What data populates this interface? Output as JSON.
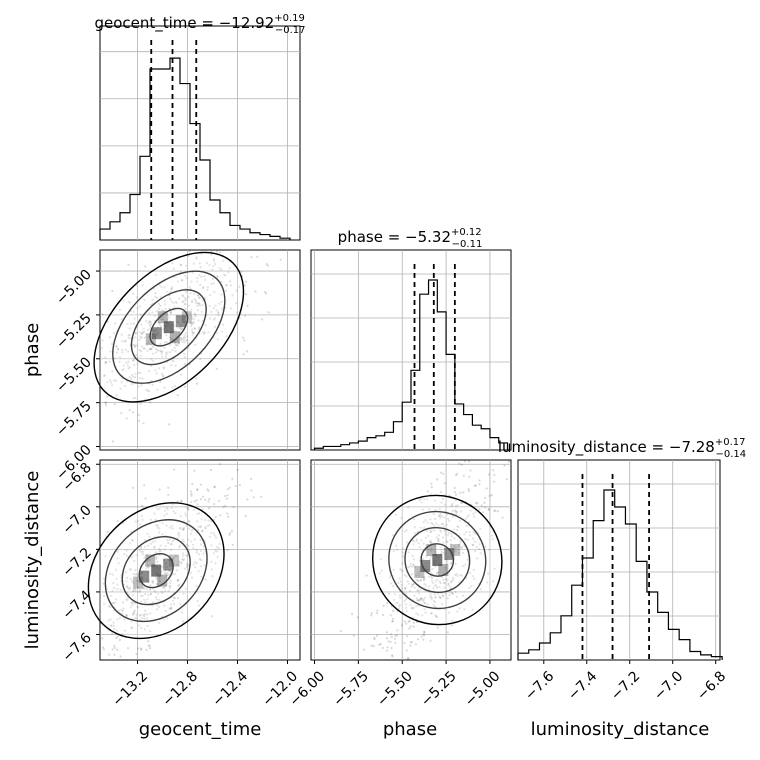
{
  "chart_data": {
    "type": "corner",
    "parameters": [
      "geocent_time",
      "phase",
      "luminosity_distance"
    ],
    "axis_labels": {
      "geocent_time": "geocent_time",
      "phase": "phase",
      "luminosity_distance": "luminosity_distance"
    },
    "titles": [
      {
        "parameter": "geocent_time",
        "text": "geocent_time = −12.92",
        "plus": "+0.19",
        "minus": "−0.17"
      },
      {
        "parameter": "phase",
        "text": "phase = −5.32",
        "plus": "+0.12",
        "minus": "−0.11"
      },
      {
        "parameter": "luminosity_distance",
        "text": "luminosity_distance = −7.28",
        "plus": "+0.17",
        "minus": "−0.14"
      }
    ],
    "ranges": {
      "geocent_time": [
        -13.5,
        -11.9
      ],
      "phase": [
        -6.02,
        -4.88
      ],
      "luminosity_distance": [
        -7.72,
        -6.78
      ]
    },
    "ticks": {
      "geocent_time": {
        "values": [
          -13.2,
          -12.8,
          -12.4,
          -12.0
        ],
        "labels": [
          "−13.2",
          "−12.8",
          "−12.4",
          "−12.0"
        ]
      },
      "phase": {
        "values": [
          -6.0,
          -5.75,
          -5.5,
          -5.25,
          -5.0
        ],
        "labels": [
          "−6.00",
          "−5.75",
          "−5.50",
          "−5.25",
          "−5.00"
        ]
      },
      "luminosity_distance": {
        "values": [
          -7.6,
          -7.4,
          -7.2,
          -7.0,
          -6.8
        ],
        "labels": [
          "−7.6",
          "−7.4",
          "−7.2",
          "−7.0",
          "−6.8"
        ]
      }
    },
    "quantiles": {
      "geocent_time": [
        -13.09,
        -12.92,
        -12.73
      ],
      "phase": [
        -5.43,
        -5.32,
        -5.2
      ],
      "luminosity_distance": [
        -7.42,
        -7.28,
        -7.11
      ]
    },
    "histograms": {
      "geocent_time": {
        "edges": [
          -13.5,
          -13.42,
          -13.34,
          -13.26,
          -13.18,
          -13.1,
          -13.02,
          -12.94,
          -12.86,
          -12.78,
          -12.7,
          -12.62,
          -12.54,
          -12.46,
          -12.38,
          -12.3,
          -12.22,
          -12.14,
          -12.06,
          -11.98
        ],
        "counts": [
          0.06,
          0.1,
          0.15,
          0.25,
          0.46,
          0.94,
          0.94,
          1.0,
          0.86,
          0.64,
          0.44,
          0.22,
          0.15,
          0.08,
          0.06,
          0.04,
          0.03,
          0.02,
          0.01
        ]
      },
      "phase": {
        "edges": [
          -6.0,
          -5.95,
          -5.9,
          -5.85,
          -5.8,
          -5.75,
          -5.7,
          -5.65,
          -5.6,
          -5.55,
          -5.5,
          -5.45,
          -5.4,
          -5.35,
          -5.3,
          -5.25,
          -5.2,
          -5.15,
          -5.1,
          -5.05,
          -5.0,
          -4.95,
          -4.9
        ],
        "counts": [
          0.01,
          0.02,
          0.02,
          0.03,
          0.04,
          0.05,
          0.07,
          0.08,
          0.1,
          0.16,
          0.27,
          0.45,
          0.88,
          0.96,
          0.78,
          0.54,
          0.26,
          0.2,
          0.14,
          0.12,
          0.07,
          0.04
        ]
      },
      "luminosity_distance": {
        "edges": [
          -7.72,
          -7.67,
          -7.62,
          -7.57,
          -7.52,
          -7.47,
          -7.42,
          -7.37,
          -7.32,
          -7.27,
          -7.22,
          -7.17,
          -7.12,
          -7.07,
          -7.02,
          -6.97,
          -6.92,
          -6.87,
          -6.82,
          -6.77
        ],
        "counts": [
          0.04,
          0.06,
          0.1,
          0.16,
          0.26,
          0.44,
          0.6,
          0.82,
          1.0,
          0.9,
          0.8,
          0.58,
          0.4,
          0.28,
          0.18,
          0.12,
          0.05,
          0.03,
          0.02
        ]
      }
    },
    "density_peaks": [
      {
        "x": "geocent_time",
        "y": "phase",
        "center": [
          -12.95,
          -5.32
        ],
        "spread": [
          0.3,
          0.2
        ]
      },
      {
        "x": "geocent_time",
        "y": "luminosity_distance",
        "center": [
          -13.05,
          -7.3
        ],
        "spread": [
          0.25,
          0.18
        ]
      },
      {
        "x": "phase",
        "y": "luminosity_distance",
        "center": [
          -5.3,
          -7.25
        ],
        "spread": [
          0.15,
          0.2
        ]
      }
    ],
    "grid": true
  }
}
